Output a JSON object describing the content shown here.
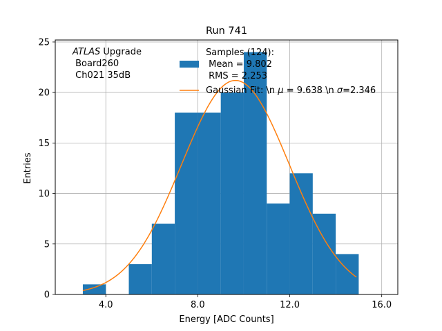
{
  "chart_data": {
    "type": "bar",
    "title": "Run 741",
    "xlabel": "Energy [ADC Counts]",
    "ylabel": "Entries",
    "xlim": [
      1.8,
      16.7
    ],
    "ylim": [
      0,
      25.2
    ],
    "xticks": [
      4,
      8,
      12,
      16
    ],
    "xtick_labels": [
      "4.0",
      "8.0",
      "12.0",
      "16.0"
    ],
    "yticks": [
      0,
      5,
      10,
      15,
      20,
      25
    ],
    "ytick_labels": [
      "0",
      "5",
      "10",
      "15",
      "20",
      "25"
    ],
    "grid": true,
    "histogram": {
      "name": "Samples (124):",
      "bin_edges": [
        3,
        4,
        5,
        6,
        7,
        8,
        9,
        10,
        11,
        12,
        13,
        14,
        15
      ],
      "values": [
        1,
        0,
        3,
        7,
        18,
        18,
        20,
        24,
        9,
        12,
        8,
        4
      ],
      "color": "#1f77b4"
    },
    "fit": {
      "name": "Gaussian Fit",
      "label_parts": [
        "Gaussian Fit: \\n ",
        "μ",
        " = 9.638 \\n ",
        "σ",
        "=2.346"
      ],
      "mu": 9.638,
      "sigma": 2.346,
      "amplitude": 21.2,
      "x_range": [
        3.0,
        14.9
      ],
      "color": "#ff7f0e"
    },
    "legend": {
      "position": "upper-center",
      "hist_lines": [
        "Samples (124):",
        " Mean = 9.802",
        " RMS = 2.253"
      ]
    },
    "annotation": {
      "position": "top-left",
      "italic": "ATLAS",
      "rest": " Upgrade",
      "lines": [
        " Board260",
        " Ch021 35dB"
      ]
    }
  }
}
